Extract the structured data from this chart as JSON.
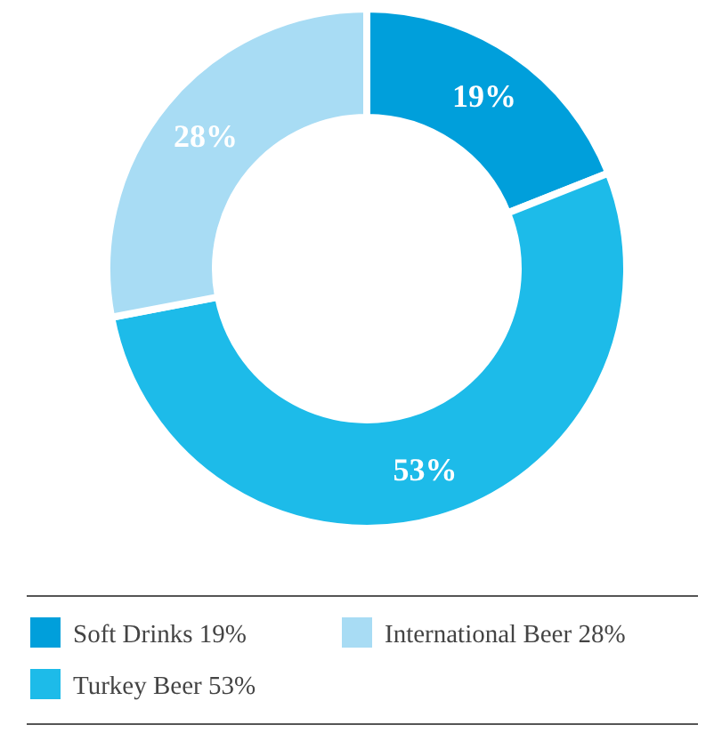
{
  "chart_data": {
    "type": "donut",
    "categories": [
      "Soft Drinks",
      "Turkey Beer",
      "International Beer"
    ],
    "values": [
      19,
      53,
      28
    ],
    "colors": [
      "#009fdb",
      "#1dbbe9",
      "#a8dcf4"
    ],
    "value_labels": [
      "19%",
      "53%",
      "28%"
    ],
    "legend": "bottom"
  }
}
